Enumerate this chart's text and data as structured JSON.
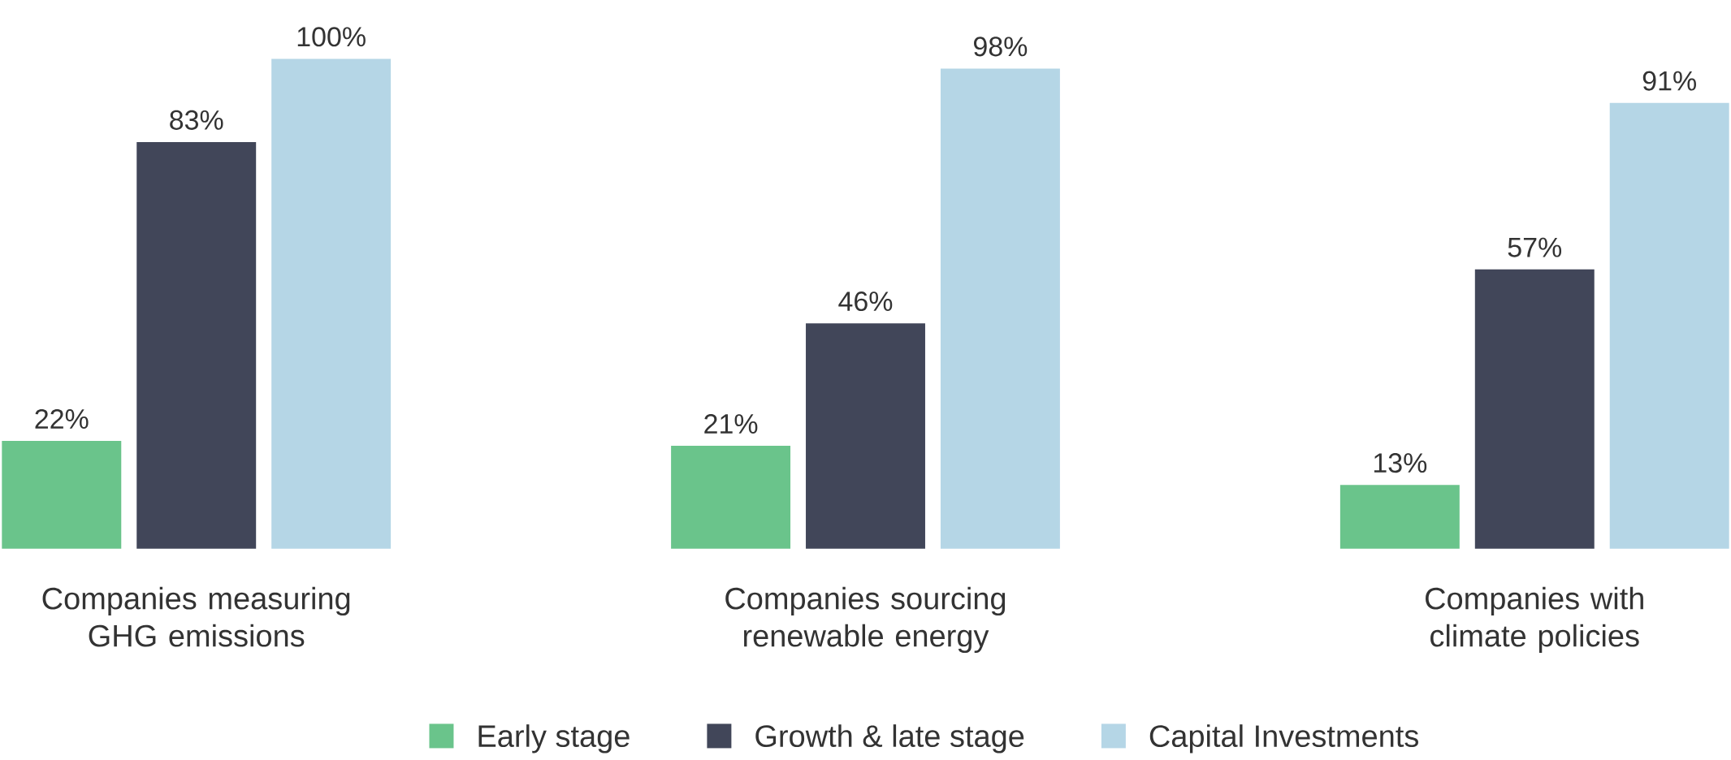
{
  "chart_data": {
    "type": "bar",
    "categories": [
      "Companies measuring GHG emissions",
      "Companies sourcing renewable energy",
      "Companies with climate policies"
    ],
    "series": [
      {
        "name": "Early stage",
        "color": "#6ac48b",
        "values": [
          22,
          21,
          13
        ],
        "value_labels": [
          "22%",
          "21%",
          "13%"
        ]
      },
      {
        "name": "Growth & late stage",
        "color": "#414659",
        "values": [
          83,
          46,
          57
        ],
        "value_labels": [
          "83%",
          "46%",
          "57%"
        ]
      },
      {
        "name": "Capital Investments",
        "color": "#b5d6e6",
        "values": [
          100,
          98,
          91
        ],
        "value_labels": [
          "100%",
          "98%",
          "91%"
        ]
      }
    ],
    "legend": "bottom"
  }
}
